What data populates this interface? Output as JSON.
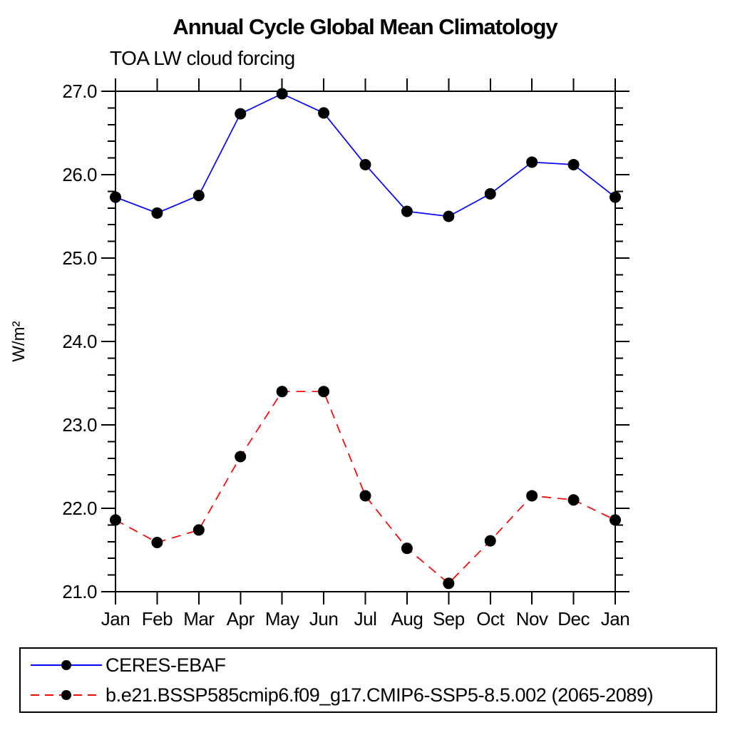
{
  "chart_data": {
    "type": "line",
    "title": "Annual Cycle Global Mean Climatology",
    "subtitle": "TOA LW cloud forcing",
    "ylabel": "W/m²",
    "xlabel": "",
    "ylim": [
      21.0,
      27.0
    ],
    "ytick_minor_step": 0.2,
    "yticks": [
      {
        "value": 21.0,
        "label": "21.0"
      },
      {
        "value": 22.0,
        "label": "22.0"
      },
      {
        "value": 23.0,
        "label": "23.0"
      },
      {
        "value": 24.0,
        "label": "24.0"
      },
      {
        "value": 25.0,
        "label": "25.0"
      },
      {
        "value": 26.0,
        "label": "26.0"
      },
      {
        "value": 27.0,
        "label": "27.0"
      }
    ],
    "categories": [
      "Jan",
      "Feb",
      "Mar",
      "Apr",
      "May",
      "Jun",
      "Jul",
      "Aug",
      "Sep",
      "Oct",
      "Nov",
      "Dec",
      "Jan"
    ],
    "grid": false,
    "legend_position": "bottom",
    "frame_color": "#000000",
    "series": [
      {
        "name": "CERES-EBAF",
        "color": "#0000ff",
        "line_style": "solid",
        "marker": "circle",
        "marker_color": "#000000",
        "values": [
          25.73,
          25.54,
          25.75,
          26.73,
          26.97,
          26.74,
          26.12,
          25.56,
          25.5,
          25.77,
          26.15,
          26.12,
          25.73
        ]
      },
      {
        "name": "b.e21.BSSP585cmip6.f09_g17.CMIP6-SSP5-8.5.002 (2065-2089)",
        "color": "#ff0000",
        "line_style": "dashed",
        "marker": "circle",
        "marker_color": "#000000",
        "values": [
          21.86,
          21.59,
          21.74,
          22.62,
          23.4,
          23.4,
          22.15,
          21.52,
          21.1,
          21.61,
          22.15,
          22.1,
          21.86
        ]
      }
    ]
  }
}
